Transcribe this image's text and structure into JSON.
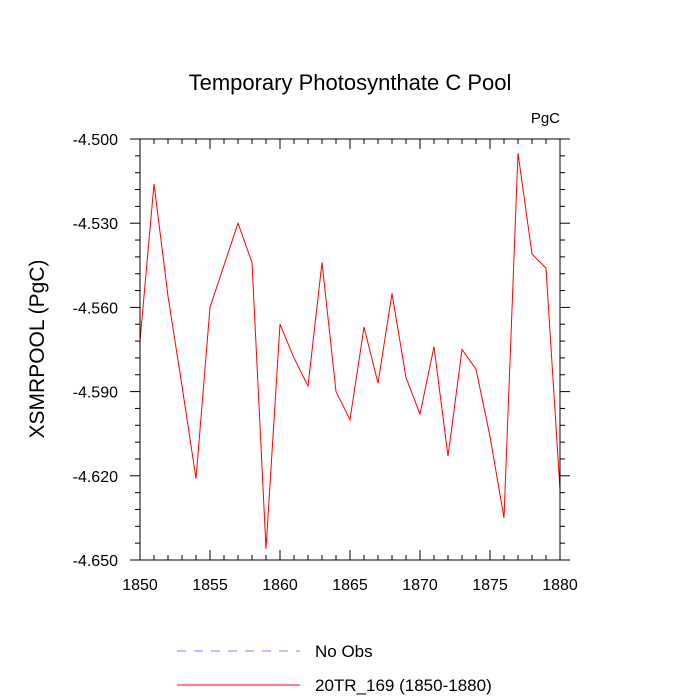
{
  "chart_data": {
    "type": "line",
    "title": "Temporary Photosynthate C Pool",
    "units_label": "PgC",
    "xlabel": "",
    "ylabel": "XSMRPOOL  (PgC)",
    "xlim": [
      1850,
      1880
    ],
    "ylim": [
      -4.65,
      -4.5
    ],
    "x_ticks": [
      1850,
      1855,
      1860,
      1865,
      1870,
      1875,
      1880
    ],
    "x_tick_labels": [
      "1850",
      "1855",
      "1860",
      "1865",
      "1870",
      "1875",
      "1880"
    ],
    "y_ticks": [
      -4.5,
      -4.53,
      -4.56,
      -4.59,
      -4.62,
      -4.65
    ],
    "y_tick_labels": [
      "-4.500",
      "-4.530",
      "-4.560",
      "-4.590",
      "-4.620",
      "-4.650"
    ],
    "x_minor_step": 1,
    "y_minor_step": 0.006,
    "grid": false,
    "legend_placement": "below",
    "series": [
      {
        "name": "No Obs",
        "color": "#8080ff",
        "style": "dashed",
        "values": []
      },
      {
        "name": "20TR_169 (1850-1880)",
        "color": "#ff0000",
        "style": "solid",
        "x": [
          1850,
          1851,
          1852,
          1853,
          1854,
          1855,
          1856,
          1857,
          1858,
          1859,
          1860,
          1861,
          1862,
          1863,
          1864,
          1865,
          1866,
          1867,
          1868,
          1869,
          1870,
          1871,
          1872,
          1873,
          1874,
          1875,
          1876,
          1877,
          1878,
          1879,
          1880
        ],
        "values": [
          -4.572,
          -4.516,
          -4.556,
          -4.588,
          -4.621,
          -4.56,
          -4.545,
          -4.53,
          -4.544,
          -4.646,
          -4.566,
          -4.578,
          -4.588,
          -4.544,
          -4.59,
          -4.6,
          -4.567,
          -4.587,
          -4.555,
          -4.585,
          -4.598,
          -4.574,
          -4.613,
          -4.575,
          -4.582,
          -4.606,
          -4.635,
          -4.505,
          -4.541,
          -4.546,
          -4.625
        ]
      }
    ]
  }
}
